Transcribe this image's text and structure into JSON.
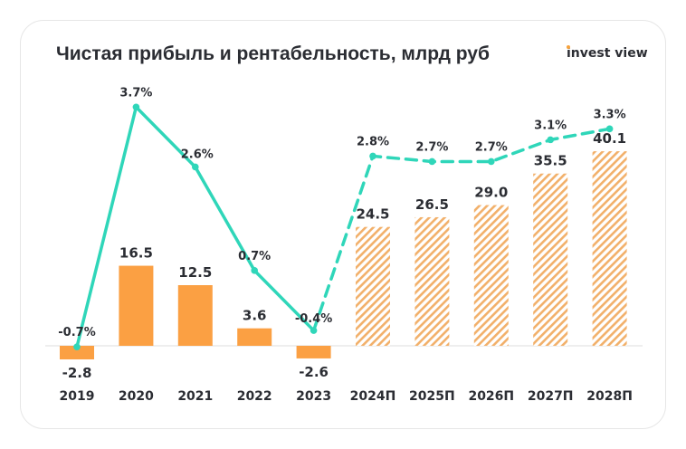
{
  "header": {
    "title": "Чистая прибыль и рентабельность, млрд руб",
    "logo": "invest view"
  },
  "chart_data": {
    "type": "bar+line",
    "title": "Чистая прибыль и рентабельность, млрд руб",
    "categories": [
      "2019",
      "2020",
      "2021",
      "2022",
      "2023",
      "2024П",
      "2025П",
      "2026П",
      "2027П",
      "2028П"
    ],
    "series": [
      {
        "type": "bar",
        "values": [
          -2.8,
          16.5,
          12.5,
          3.6,
          -2.6,
          24.5,
          26.5,
          29.0,
          35.5,
          40.1
        ],
        "labels": [
          "-2.8",
          "16.5",
          "12.5",
          "3.6",
          "-2.6",
          "24.5",
          "26.5",
          "29.0",
          "35.5",
          "40.1"
        ],
        "forecast_from_index": 5,
        "color": "#fba043"
      },
      {
        "type": "line",
        "values": [
          -0.7,
          3.7,
          2.6,
          0.7,
          -0.4,
          2.8,
          2.7,
          2.7,
          3.1,
          3.3
        ],
        "labels": [
          "-0.7%",
          "3.7%",
          "2.6%",
          "0.7%",
          "-0.4%",
          "2.8%",
          "2.7%",
          "2.7%",
          "3.1%",
          "3.3%"
        ],
        "unit": "%",
        "forecast_from_index": 4,
        "color": "#2fd6b9"
      }
    ],
    "grid": false,
    "legend": "none"
  }
}
